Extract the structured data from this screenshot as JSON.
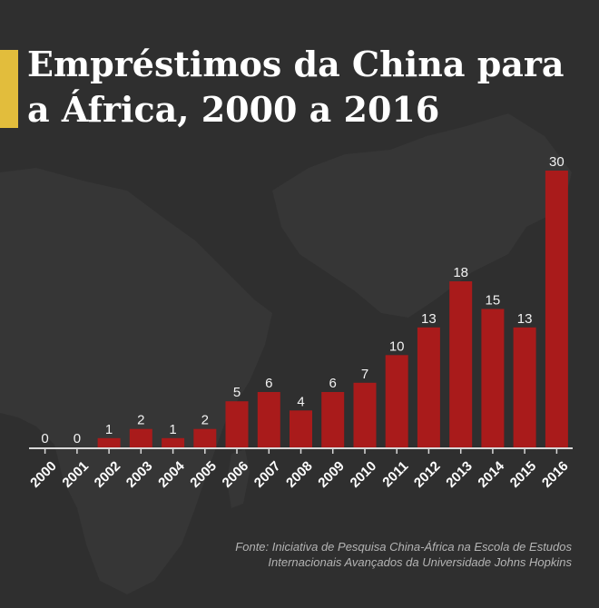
{
  "title_lines": [
    "Empréstimos da China para",
    "a África, 2000 a 2016"
  ],
  "source_lines": [
    "Fonte: Iniciativa de Pesquisa China-África na Escola de Estudos",
    "Internacionais Avançados da Universidade Johns Hopkins"
  ],
  "colors": {
    "background": "#2f2f2f",
    "bar": "#a91b1b",
    "accent": "#e2bd3c",
    "text": "#ffffff"
  },
  "chart_data": {
    "type": "bar",
    "categories": [
      "2000",
      "2001",
      "2002",
      "2003",
      "2004",
      "2005",
      "2006",
      "2007",
      "2008",
      "2009",
      "2010",
      "2011",
      "2012",
      "2013",
      "2014",
      "2015",
      "2016"
    ],
    "values": [
      0,
      0,
      1,
      2,
      1,
      2,
      5,
      6,
      4,
      6,
      7,
      10,
      13,
      18,
      15,
      13,
      30
    ],
    "title": "Empréstimos da China para a África, 2000 a 2016",
    "xlabel": "",
    "ylabel": "",
    "ylim": [
      0,
      30
    ],
    "grid": false,
    "data_labels": true
  }
}
